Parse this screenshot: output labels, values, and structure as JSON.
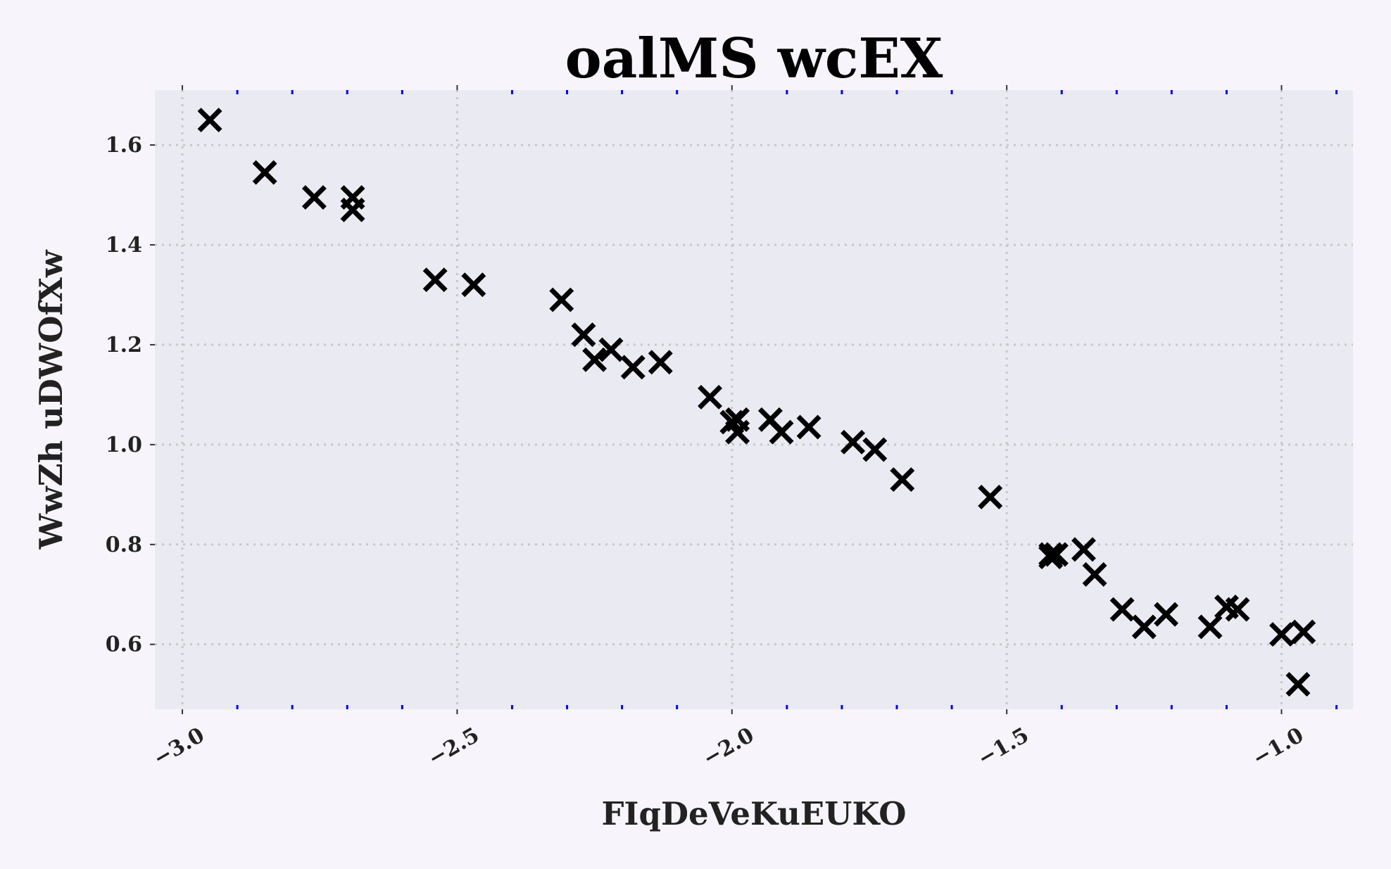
{
  "chart_data": {
    "type": "scatter",
    "title": "oalMS wcEX",
    "xlabel": "FIqDeVeKuEUKO",
    "ylabel": "WwZh uDWOfXw",
    "xlim": [
      -3.05,
      -0.87
    ],
    "ylim": [
      0.47,
      1.71
    ],
    "x_ticks": [
      -3.0,
      -2.5,
      -2.0,
      -1.5,
      -1.0
    ],
    "x_tick_labels": [
      "−3.0",
      "−2.5",
      "−2.0",
      "−1.5",
      "−1.0"
    ],
    "x_minor_ticks": [
      -2.9,
      -2.8,
      -2.7,
      -2.6,
      -2.4,
      -2.3,
      -2.2,
      -2.1,
      -1.9,
      -1.8,
      -1.7,
      -1.6,
      -1.4,
      -1.3,
      -1.2,
      -1.1,
      -0.9
    ],
    "y_ticks": [
      0.6,
      0.8,
      1.0,
      1.2,
      1.4,
      1.6
    ],
    "y_tick_labels": [
      "0.6",
      "0.8",
      "1.0",
      "1.2",
      "1.4",
      "1.6"
    ],
    "grid": true,
    "marker": "x",
    "colors": {
      "marker": "#000000",
      "plot_background": "#eaeaf2",
      "figure_background": "#f7f5fb",
      "grid": "#c8c8c8",
      "minor_tick": "#0000ff"
    },
    "series": [
      {
        "points": [
          [
            -2.95,
            1.65
          ],
          [
            -2.85,
            1.545
          ],
          [
            -2.76,
            1.495
          ],
          [
            -2.69,
            1.495
          ],
          [
            -2.69,
            1.47
          ],
          [
            -2.54,
            1.33
          ],
          [
            -2.47,
            1.32
          ],
          [
            -2.31,
            1.29
          ],
          [
            -2.27,
            1.22
          ],
          [
            -2.25,
            1.17
          ],
          [
            -2.22,
            1.19
          ],
          [
            -2.18,
            1.155
          ],
          [
            -2.13,
            1.165
          ],
          [
            -2.04,
            1.095
          ],
          [
            -2.0,
            1.045
          ],
          [
            -1.99,
            1.025
          ],
          [
            -1.99,
            1.05
          ],
          [
            -1.93,
            1.05
          ],
          [
            -1.91,
            1.025
          ],
          [
            -1.86,
            1.035
          ],
          [
            -1.78,
            1.005
          ],
          [
            -1.74,
            0.99
          ],
          [
            -1.69,
            0.93
          ],
          [
            -1.53,
            0.895
          ],
          [
            -1.42,
            0.78
          ],
          [
            -1.42,
            0.775
          ],
          [
            -1.41,
            0.78
          ],
          [
            -1.36,
            0.79
          ],
          [
            -1.34,
            0.74
          ],
          [
            -1.29,
            0.67
          ],
          [
            -1.25,
            0.635
          ],
          [
            -1.21,
            0.66
          ],
          [
            -1.13,
            0.635
          ],
          [
            -1.1,
            0.675
          ],
          [
            -1.08,
            0.67
          ],
          [
            -1.0,
            0.62
          ],
          [
            -0.96,
            0.625
          ],
          [
            -0.97,
            0.52
          ]
        ]
      }
    ]
  }
}
